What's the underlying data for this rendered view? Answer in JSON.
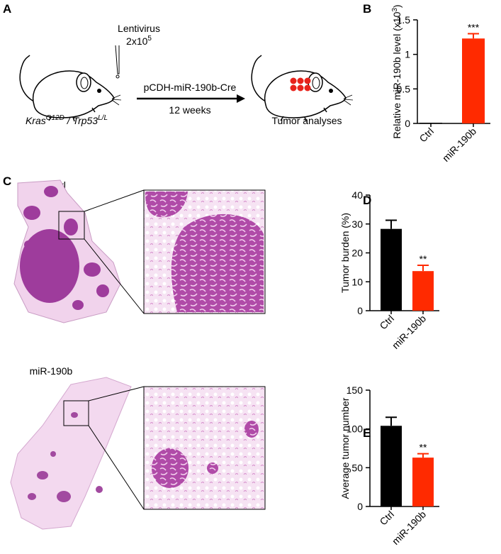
{
  "panel_labels": [
    "A",
    "B",
    "C",
    "D",
    "E"
  ],
  "diagram": {
    "virus": "Lentivirus",
    "dose": "2x10",
    "dose_sup": "5",
    "construct": "pCDH-miR-190b-Cre",
    "duration": "12 weeks",
    "genotype_1": "Kras",
    "genotype_1_sup": "G12D",
    "separator": " / ",
    "genotype_2": "Trp53",
    "genotype_2_sup": "L/L",
    "result": "Tumor analyses"
  },
  "histology": {
    "control": "Ctrl",
    "treated": "miR-190b"
  },
  "chart_data": [
    {
      "type": "bar",
      "y_label": "Relative miR-190b level (x10",
      "y_label_sup": "3",
      "y_label_end": ")",
      "categories": [
        "Ctrl",
        "miR-190b"
      ],
      "values": [
        0.01,
        1.23
      ],
      "errors": [
        0,
        0.07
      ],
      "colors": [
        "#000000",
        "#ff2a00"
      ],
      "significance": "***",
      "ylim": [
        0,
        1.5
      ],
      "yticks": [
        0,
        0.5,
        1,
        1.5
      ]
    },
    {
      "type": "bar",
      "y_label": "Tumor burden (%)",
      "categories": [
        "Ctrl",
        "miR-190b"
      ],
      "values": [
        28.3,
        13.7
      ],
      "errors": [
        3,
        2
      ],
      "colors": [
        "#000000",
        "#ff2a00"
      ],
      "significance": "**",
      "ylim": [
        0,
        40
      ],
      "yticks": [
        0,
        10,
        20,
        30,
        40
      ]
    },
    {
      "type": "bar",
      "y_label": "Average tumor number",
      "categories": [
        "Ctrl",
        "miR-190b"
      ],
      "values": [
        104,
        63
      ],
      "errors": [
        11,
        5
      ],
      "colors": [
        "#000000",
        "#ff2a00"
      ],
      "significance": "**",
      "ylim": [
        0,
        150
      ],
      "yticks": [
        0,
        50,
        100,
        150
      ]
    }
  ]
}
